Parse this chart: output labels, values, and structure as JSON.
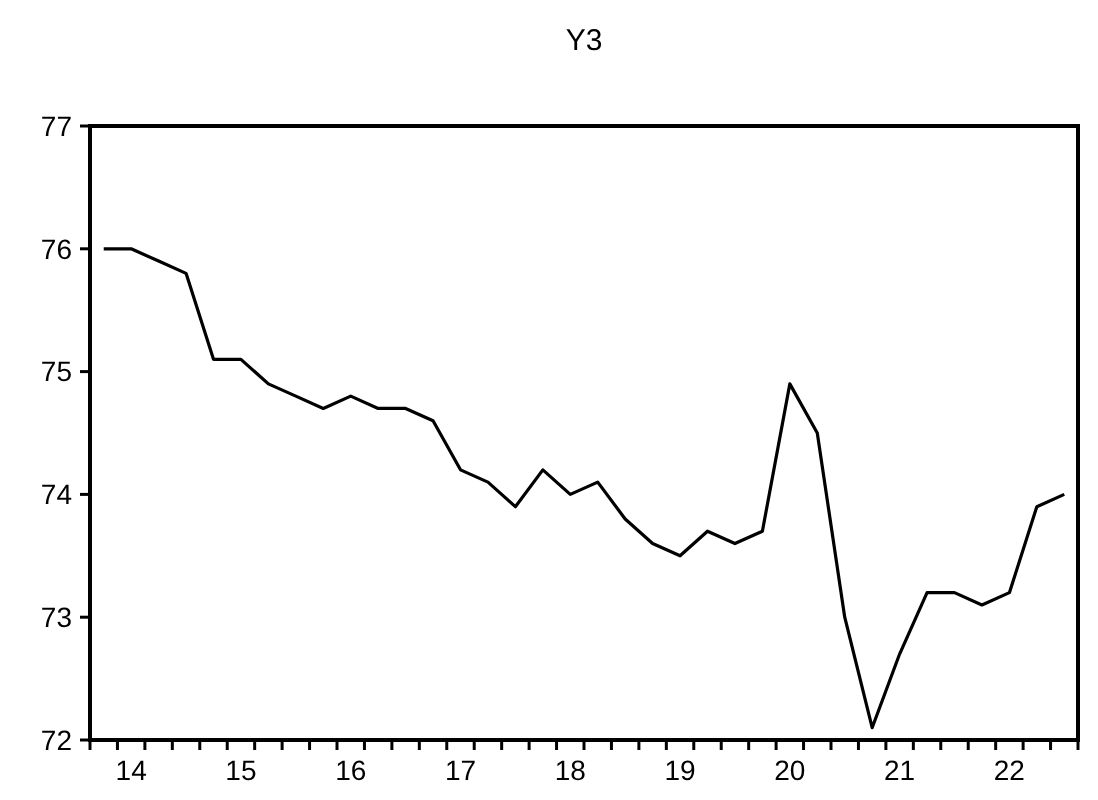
{
  "chart_data": {
    "type": "line",
    "title": "Y3",
    "categories": [
      null,
      "14",
      null,
      null,
      null,
      "15",
      null,
      null,
      null,
      "16",
      null,
      null,
      null,
      "17",
      null,
      null,
      null,
      "18",
      null,
      null,
      null,
      "19",
      null,
      null,
      null,
      "20",
      null,
      null,
      null,
      "21",
      null,
      null,
      null,
      "22",
      null,
      null
    ],
    "series": [
      {
        "color": "#000000",
        "values": [
          76.0,
          76.0,
          75.9,
          75.8,
          75.1,
          75.1,
          74.9,
          74.8,
          74.7,
          74.8,
          74.7,
          74.7,
          74.6,
          74.2,
          74.1,
          73.9,
          74.2,
          74.0,
          74.1,
          73.8,
          73.6,
          73.5,
          73.7,
          73.6,
          73.7,
          74.9,
          74.5,
          73.0,
          72.1,
          72.7,
          73.2,
          73.2,
          73.1,
          73.2,
          73.9,
          74.0
        ]
      }
    ],
    "ylim": [
      72,
      77
    ],
    "yticks": [
      72,
      73,
      74,
      75,
      76,
      77
    ],
    "grid": false,
    "marker": "none",
    "line_style": "solid"
  }
}
